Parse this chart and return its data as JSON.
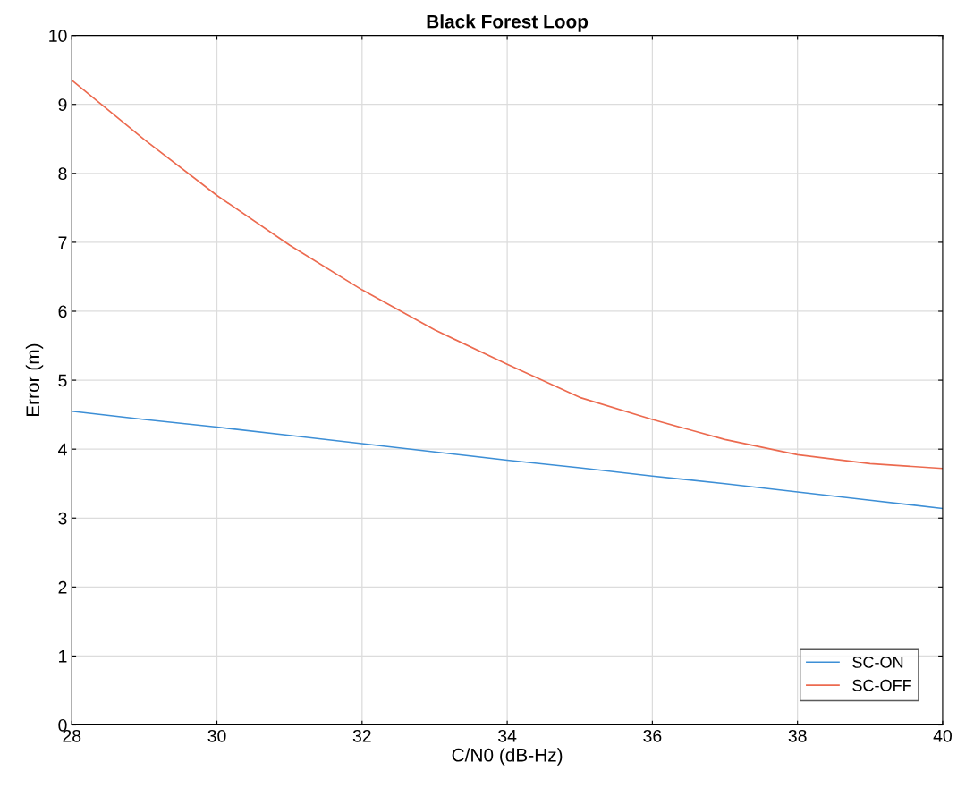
{
  "chart_data": {
    "type": "line",
    "title": "Black Forest Loop",
    "xlabel": "C/N0 (dB-Hz)",
    "ylabel": "Error (m)",
    "x": [
      28,
      29,
      30,
      31,
      32,
      33,
      34,
      35,
      36,
      37,
      38,
      39,
      40
    ],
    "series": [
      {
        "name": "SC-ON",
        "color": "#3d8fd6",
        "values": [
          4.55,
          4.43,
          4.32,
          4.2,
          4.08,
          3.96,
          3.84,
          3.73,
          3.61,
          3.5,
          3.38,
          3.26,
          3.14
        ]
      },
      {
        "name": "SC-OFF",
        "color": "#ec6a4f",
        "values": [
          9.35,
          8.49,
          7.68,
          6.96,
          6.31,
          5.73,
          5.23,
          4.75,
          4.43,
          4.14,
          3.92,
          3.79,
          3.72
        ]
      }
    ],
    "xlim": [
      28,
      40
    ],
    "xticks": [
      28,
      30,
      32,
      34,
      36,
      38,
      40
    ],
    "ylim": [
      0,
      10
    ],
    "yticks": [
      0,
      1,
      2,
      3,
      4,
      5,
      6,
      7,
      8,
      9,
      10
    ],
    "grid": true,
    "legend": "bottom right",
    "marker": "none",
    "line_style": "solid"
  }
}
